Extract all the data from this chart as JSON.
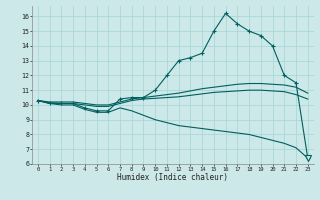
{
  "xlabel": "Humidex (Indice chaleur)",
  "background_color": "#cce8e8",
  "grid_color": "#aad8d8",
  "line_color": "#005f5f",
  "xlim": [
    -0.5,
    23.5
  ],
  "ylim": [
    6,
    16.7
  ],
  "yticks": [
    6,
    7,
    8,
    9,
    10,
    11,
    12,
    13,
    14,
    15,
    16
  ],
  "xticks": [
    0,
    1,
    2,
    3,
    4,
    5,
    6,
    7,
    8,
    9,
    10,
    11,
    12,
    13,
    14,
    15,
    16,
    17,
    18,
    19,
    20,
    21,
    22,
    23
  ],
  "hours": [
    0,
    1,
    2,
    3,
    4,
    5,
    6,
    7,
    8,
    9,
    10,
    11,
    12,
    13,
    14,
    15,
    16,
    17,
    18,
    19,
    20,
    21,
    22,
    23
  ],
  "line_main": [
    10.3,
    10.1,
    10.1,
    10.1,
    9.8,
    9.6,
    9.6,
    10.4,
    10.5,
    10.5,
    11.0,
    12.0,
    13.0,
    13.2,
    13.5,
    15.0,
    16.2,
    15.5,
    15.0,
    14.7,
    14.0,
    12.0,
    11.5,
    6.4
  ],
  "line_avg_hi": [
    10.3,
    10.2,
    10.2,
    10.2,
    10.1,
    10.0,
    10.0,
    10.2,
    10.4,
    10.5,
    10.6,
    10.7,
    10.8,
    10.95,
    11.1,
    11.2,
    11.3,
    11.4,
    11.45,
    11.45,
    11.4,
    11.35,
    11.2,
    10.8
  ],
  "line_avg": [
    10.3,
    10.15,
    10.1,
    10.1,
    10.0,
    9.9,
    9.9,
    10.1,
    10.3,
    10.4,
    10.45,
    10.5,
    10.55,
    10.65,
    10.75,
    10.85,
    10.9,
    10.95,
    11.0,
    11.0,
    10.95,
    10.9,
    10.7,
    10.4
  ],
  "line_min": [
    10.3,
    10.1,
    10.0,
    10.0,
    9.7,
    9.5,
    9.5,
    9.8,
    9.6,
    9.3,
    9.0,
    8.8,
    8.6,
    8.5,
    8.4,
    8.3,
    8.2,
    8.1,
    8.0,
    7.8,
    7.6,
    7.4,
    7.1,
    6.4
  ]
}
